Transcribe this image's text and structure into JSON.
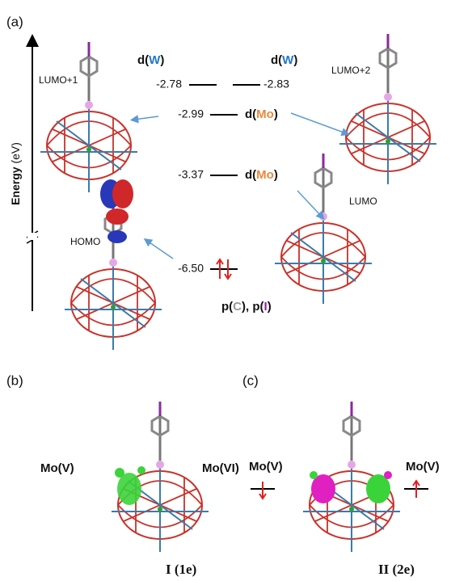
{
  "panel_a": {
    "label": "(a)",
    "axis_label": {
      "main": "Energy",
      "unit": "(eV)"
    },
    "orbitals": [
      "LUMO+1",
      "LUMO+2",
      "LUMO",
      "HOMO"
    ],
    "energies": [
      "-2.78",
      "-2.83",
      "-2.99",
      "-3.37",
      "-6.50"
    ],
    "characters": [
      {
        "pre": "d(",
        "el": "W",
        "post": ")"
      },
      {
        "pre": "d(",
        "el": "W",
        "post": ")"
      },
      {
        "pre": "d(",
        "el": "Mo",
        "post": ")"
      },
      {
        "pre": "d(",
        "el": "Mo",
        "post": ")"
      },
      {
        "pre": "p(",
        "el": "C",
        "mid": "), p(",
        "el2": "I",
        "post": ")"
      }
    ]
  },
  "panel_b": {
    "label": "(b)",
    "sites": [
      "Mo(V)",
      "Mo(VI)"
    ],
    "caption": "I (1e)"
  },
  "panel_c": {
    "label": "(c)",
    "sites": [
      "Mo(V)",
      "Mo(V)"
    ],
    "caption": "II (2e)"
  }
}
